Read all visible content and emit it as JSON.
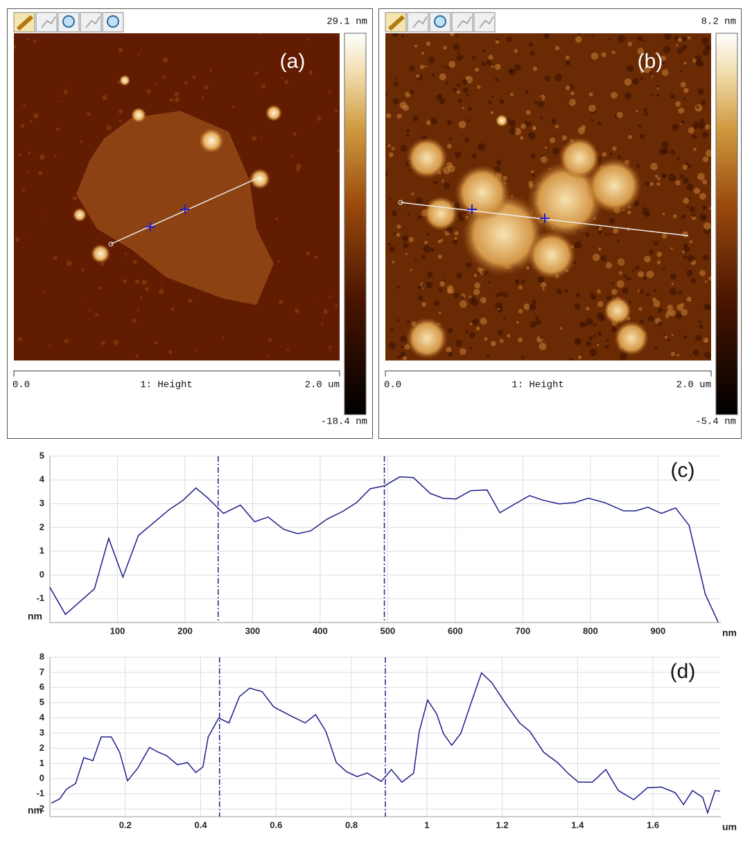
{
  "panels": [
    {
      "label": "(a)",
      "z_max": "29.1 nm",
      "z_min": "-18.4 nm",
      "scale_start": "0.0",
      "channel": "1: Height",
      "scale_end": "2.0 um"
    },
    {
      "label": "(b)",
      "z_max": "8.2 nm",
      "z_min": "-5.4 nm",
      "scale_start": "0.0",
      "channel": "1: Height",
      "scale_end": "2.0 um"
    }
  ],
  "chart_data": [
    {
      "type": "line",
      "annotation": "(c)",
      "x_label": "nm",
      "y_label": "nm",
      "color": "#1c1c8a",
      "grid": true,
      "x": [
        0,
        23,
        66,
        87,
        108,
        131,
        177,
        197,
        216,
        233,
        257,
        282,
        303,
        323,
        346,
        367,
        386,
        410,
        433,
        454,
        474,
        495,
        518,
        538,
        563,
        582,
        601,
        623,
        647,
        666,
        687,
        710,
        731,
        754,
        777,
        797,
        821,
        849,
        867,
        885,
        905,
        926,
        946,
        970,
        989
      ],
      "values": [
        -0.52,
        -1.66,
        -0.58,
        1.54,
        -0.09,
        1.66,
        2.76,
        3.14,
        3.66,
        3.26,
        2.59,
        2.94,
        2.24,
        2.44,
        1.92,
        1.74,
        1.86,
        2.35,
        2.67,
        3.05,
        3.63,
        3.75,
        4.13,
        4.1,
        3.43,
        3.23,
        3.2,
        3.55,
        3.58,
        2.62,
        2.97,
        3.34,
        3.14,
        2.99,
        3.05,
        3.23,
        3.05,
        2.7,
        2.7,
        2.85,
        2.59,
        2.82,
        2.09,
        -0.81,
        -1.98
      ],
      "markers": [
        249,
        495
      ],
      "xlim": [
        0,
        993
      ],
      "xticks": [
        100,
        200,
        300,
        400,
        500,
        600,
        700,
        800,
        900
      ],
      "ylim": [
        -2,
        5
      ],
      "yticks": [
        -1,
        0,
        1,
        2,
        3,
        4,
        5
      ]
    },
    {
      "type": "line",
      "annotation": "(d)",
      "x_label": "um",
      "y_label": "nm",
      "color": "#1c1c8a",
      "grid": true,
      "x": [
        0.004,
        0.026,
        0.044,
        0.068,
        0.09,
        0.114,
        0.136,
        0.163,
        0.185,
        0.206,
        0.233,
        0.264,
        0.288,
        0.31,
        0.338,
        0.365,
        0.387,
        0.406,
        0.42,
        0.448,
        0.475,
        0.503,
        0.53,
        0.563,
        0.594,
        0.64,
        0.677,
        0.705,
        0.732,
        0.76,
        0.787,
        0.815,
        0.842,
        0.879,
        0.906,
        0.934,
        0.965,
        0.98,
        1.002,
        1.026,
        1.044,
        1.066,
        1.09,
        1.117,
        1.145,
        1.172,
        1.209,
        1.246,
        1.273,
        1.31,
        1.347,
        1.374,
        1.402,
        1.439,
        1.475,
        1.508,
        1.549,
        1.585,
        1.622,
        1.659,
        1.681,
        1.705,
        1.732,
        1.745,
        1.765,
        1.778
      ],
      "values": [
        -1.6,
        -1.33,
        -0.69,
        -0.32,
        1.38,
        1.19,
        2.75,
        2.75,
        1.74,
        -0.14,
        0.69,
        2.06,
        1.74,
        1.51,
        0.92,
        1.06,
        0.41,
        0.78,
        2.75,
        3.99,
        3.67,
        5.41,
        5.96,
        5.73,
        4.72,
        4.13,
        3.67,
        4.22,
        3.12,
        1.06,
        0.46,
        0.14,
        0.37,
        -0.18,
        0.6,
        -0.23,
        0.37,
        3.12,
        5.18,
        4.27,
        2.98,
        2.2,
        2.98,
        4.95,
        6.97,
        6.33,
        4.95,
        3.67,
        3.12,
        1.74,
        1.06,
        0.37,
        -0.23,
        -0.23,
        0.6,
        -0.78,
        -1.38,
        -0.6,
        -0.55,
        -0.92,
        -1.7,
        -0.78,
        -1.24,
        -2.25,
        -0.78,
        -0.83
      ],
      "markers": [
        0.45,
        0.89
      ],
      "xlim": [
        0,
        1.78
      ],
      "xticks": [
        0.2,
        0.4,
        0.6,
        0.8,
        1,
        1.2,
        1.4,
        1.6
      ],
      "ylim": [
        -2.5,
        8
      ],
      "yticks": [
        -2,
        -1,
        0,
        1,
        2,
        3,
        4,
        5,
        6,
        7,
        8
      ]
    }
  ]
}
